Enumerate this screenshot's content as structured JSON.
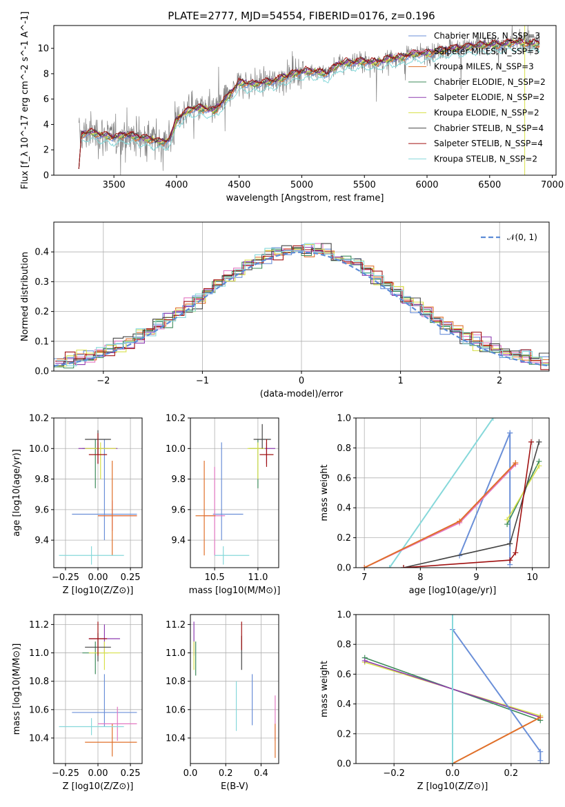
{
  "figure_title": "PLATE=2777, MJD=54554, FIBERID=0176, z=0.196",
  "colors": {
    "Chabrier MILES": "#6a8fd8",
    "Salpeter MILES": "#e377c2",
    "Kroupa MILES": "#e0702a",
    "Chabrier ELODIE": "#3d8b5a",
    "Salpeter ELODIE": "#8e3bb0",
    "Kroupa ELODIE": "#d8e04a",
    "Chabrier STELIB": "#444444",
    "Salpeter STELIB": "#a01010",
    "Kroupa STELIB": "#86d8da",
    "data": "#808080",
    "gaussian": "#5b8bd6"
  },
  "chart_data": [
    {
      "id": "spectrum",
      "type": "line",
      "title": "PLATE=2777, MJD=54554, FIBERID=0176, z=0.196",
      "xlabel": "wavelength [Angstrom, rest frame]",
      "ylabel": "Flux [f_λ 10^-17 erg cm^-2 s^-1 A^-1]",
      "xlim": [
        3020,
        7030
      ],
      "ylim": [
        0,
        11.8
      ],
      "xticks": [
        3500,
        4000,
        4500,
        5000,
        5500,
        6000,
        6500,
        7000
      ],
      "yticks": [
        0,
        2,
        4,
        6,
        8,
        10
      ],
      "grid": false,
      "legend_position": "top-right",
      "legend": [
        "Chabrier MILES, N_SSP=3",
        "Salpeter MILES, N_SSP=3",
        "Kroupa MILES, N_SSP=3",
        "Chabrier ELODIE, N_SSP=2",
        "Salpeter ELODIE, N_SSP=2",
        "Kroupa ELODIE, N_SSP=2",
        "Chabrier STELIB, N_SSP=4",
        "Salpeter STELIB, N_SSP=4",
        "Kroupa STELIB, N_SSP=2"
      ],
      "model_continuum": {
        "x": [
          3220,
          3300,
          3400,
          3500,
          3600,
          3700,
          3800,
          3900,
          3950,
          4000,
          4100,
          4200,
          4300,
          4400,
          4500,
          4600,
          4700,
          4800,
          4900,
          5000,
          5100,
          5200,
          5300,
          5400,
          5500,
          5600,
          5700,
          5800,
          5900,
          6000,
          6100,
          6200,
          6300,
          6400,
          6500,
          6600,
          6700,
          6800,
          6900
        ],
        "y": [
          3.1,
          3.4,
          3.2,
          3.0,
          3.2,
          3.0,
          2.8,
          2.6,
          2.9,
          4.4,
          5.2,
          5.3,
          5.1,
          6.1,
          7.3,
          7.2,
          7.3,
          7.5,
          7.9,
          8.2,
          8.2,
          8.0,
          8.8,
          8.9,
          9.0,
          8.9,
          9.2,
          9.3,
          9.6,
          9.6,
          9.8,
          10.0,
          10.1,
          10.2,
          10.3,
          10.3,
          10.5,
          10.4,
          10.4
        ]
      },
      "data_envelope_note": "noisy observed spectrum (grey) scattered around the model continuum"
    },
    {
      "id": "residuals",
      "type": "line",
      "xlabel": "(data-model)/error",
      "ylabel": "Normed distribution",
      "xlim": [
        -2.5,
        2.5
      ],
      "ylim": [
        0,
        0.5
      ],
      "xticks": [
        -2,
        -1,
        0,
        1,
        2
      ],
      "yticks": [
        0.0,
        0.1,
        0.2,
        0.3,
        0.4
      ],
      "grid": true,
      "legend_position": "top-right",
      "legend": [
        "𝒩(0, 1)"
      ],
      "bin_width": 0.1
    },
    {
      "id": "age_vs_Z",
      "type": "scatter",
      "xlabel": "Z [log10(Z/Z⊙)]",
      "ylabel": "age  [log10(age/yr)]",
      "xlim": [
        -0.34,
        0.34
      ],
      "ylim": [
        9.22,
        10.2
      ],
      "xticks": [
        -0.25,
        0.0,
        0.25
      ],
      "yticks": [
        9.4,
        9.6,
        9.8,
        10.0,
        10.2
      ],
      "grid": true,
      "points": [
        {
          "series": "Chabrier MILES",
          "x": 0.05,
          "y": 9.57,
          "xerr": [
            0.25,
            0.25
          ],
          "yerr": [
            0.17,
            0.49
          ]
        },
        {
          "series": "Salpeter MILES",
          "x": 0.11,
          "y": 9.56,
          "xerr": [
            0.11,
            0.19
          ],
          "yerr": [
            0.1,
            0.1
          ]
        },
        {
          "series": "Kroupa MILES",
          "x": 0.11,
          "y": 9.56,
          "xerr": [
            0.11,
            0.19
          ],
          "yerr": [
            0.26,
            0.36
          ]
        },
        {
          "series": "Chabrier ELODIE",
          "x": -0.02,
          "y": 10.0,
          "xerr": [
            0.1,
            0.1
          ],
          "yerr": [
            0.26,
            0.06
          ]
        },
        {
          "series": "Salpeter ELODIE",
          "x": 0.0,
          "y": 10.0,
          "xerr": [
            0.15,
            0.15
          ],
          "yerr": [
            0.1,
            0.04
          ]
        },
        {
          "series": "Kroupa ELODIE",
          "x": 0.02,
          "y": 10.0,
          "xerr": [
            0.12,
            0.12
          ],
          "yerr": [
            0.2,
            0.04
          ]
        },
        {
          "series": "Chabrier STELIB",
          "x": 0.0,
          "y": 10.06,
          "xerr": [
            0.1,
            0.1
          ],
          "yerr": [
            0.1,
            0.06
          ]
        },
        {
          "series": "Salpeter STELIB",
          "x": 0.0,
          "y": 9.96,
          "xerr": [
            0.07,
            0.07
          ],
          "yerr": [
            0.06,
            0.14
          ]
        },
        {
          "series": "Kroupa STELIB",
          "x": -0.05,
          "y": 9.3,
          "xerr": [
            0.25,
            0.25
          ],
          "yerr": [
            0.06,
            0.06
          ]
        }
      ]
    },
    {
      "id": "age_vs_mass",
      "type": "scatter",
      "xlabel": "mass [log10(M/M⊙)]",
      "ylabel": "",
      "xlim": [
        10.22,
        11.24
      ],
      "ylim": [
        9.22,
        10.2
      ],
      "xticks": [
        10.5,
        11.0
      ],
      "yticks": [
        9.4,
        9.6,
        9.8,
        10.0,
        10.2
      ],
      "grid": true,
      "points": [
        {
          "series": "Chabrier MILES",
          "x": 10.58,
          "y": 9.57,
          "xerr": [
            0.1,
            0.25
          ],
          "yerr": [
            0.17,
            0.47
          ]
        },
        {
          "series": "Salpeter MILES",
          "x": 10.5,
          "y": 9.56,
          "xerr": [
            0.12,
            0.12
          ],
          "yerr": [
            0.26,
            0.32
          ]
        },
        {
          "series": "Kroupa MILES",
          "x": 10.38,
          "y": 9.56,
          "xerr": [
            0.1,
            0.13
          ],
          "yerr": [
            0.26,
            0.36
          ]
        },
        {
          "series": "Chabrier ELODIE",
          "x": 11.0,
          "y": 10.0,
          "xerr": [
            0.1,
            0.08
          ],
          "yerr": [
            0.26,
            0.06
          ]
        },
        {
          "series": "Salpeter ELODIE",
          "x": 11.1,
          "y": 10.0,
          "xerr": [
            0.1,
            0.1
          ],
          "yerr": [
            0.1,
            0.04
          ]
        },
        {
          "series": "Kroupa ELODIE",
          "x": 11.0,
          "y": 10.0,
          "xerr": [
            0.12,
            0.08
          ],
          "yerr": [
            0.2,
            0.04
          ]
        },
        {
          "series": "Chabrier STELIB",
          "x": 11.05,
          "y": 10.06,
          "xerr": [
            0.1,
            0.1
          ],
          "yerr": [
            0.06,
            0.1
          ]
        },
        {
          "series": "Salpeter STELIB",
          "x": 11.1,
          "y": 9.96,
          "xerr": [
            0.08,
            0.08
          ],
          "yerr": [
            0.08,
            0.1
          ]
        },
        {
          "series": "Kroupa STELIB",
          "x": 10.6,
          "y": 9.3,
          "xerr": [
            0.1,
            0.3
          ],
          "yerr": [
            0.06,
            0.06
          ]
        }
      ]
    },
    {
      "id": "mass_weight_vs_age",
      "type": "line",
      "xlabel": "age  [log10(age/yr)]",
      "ylabel": "mass weight",
      "xlim": [
        6.85,
        10.3
      ],
      "ylim": [
        0.0,
        1.0
      ],
      "xticks": [
        7,
        8,
        9,
        10
      ],
      "yticks": [
        0.0,
        0.2,
        0.4,
        0.6,
        0.8,
        1.0
      ],
      "grid": true,
      "series": [
        {
          "name": "Kroupa STELIB",
          "x": [
            7.45,
            9.3
          ],
          "y": [
            0.0,
            1.0
          ]
        },
        {
          "name": "Chabrier MILES",
          "x": [
            9.6,
            9.6,
            8.7,
            9.6
          ],
          "y": [
            0.02,
            0.9,
            0.08,
            0.9
          ]
        },
        {
          "name": "Salpeter MILES",
          "x": [
            7.0,
            8.7,
            9.7
          ],
          "y": [
            0.0,
            0.3,
            0.69
          ]
        },
        {
          "name": "Kroupa MILES",
          "x": [
            7.0,
            8.7,
            9.7
          ],
          "y": [
            0.0,
            0.31,
            0.7
          ]
        },
        {
          "name": "Chabrier ELODIE",
          "x": [
            9.55,
            10.12
          ],
          "y": [
            0.29,
            0.71
          ]
        },
        {
          "name": "Kroupa ELODIE",
          "x": [
            9.55,
            10.12
          ],
          "y": [
            0.32,
            0.68
          ]
        },
        {
          "name": "Chabrier STELIB",
          "x": [
            7.7,
            9.6,
            10.12
          ],
          "y": [
            0.0,
            0.16,
            0.84
          ]
        },
        {
          "name": "Salpeter STELIB",
          "x": [
            7.7,
            9.6,
            9.7,
            9.98
          ],
          "y": [
            0.0,
            0.05,
            0.1,
            0.84
          ]
        }
      ]
    },
    {
      "id": "mass_vs_Z",
      "type": "scatter",
      "xlabel": "Z [log10(Z/Z⊙)]",
      "ylabel": "mass [log10(M/M⊙)]",
      "xlim": [
        -0.34,
        0.34
      ],
      "ylim": [
        10.22,
        11.27
      ],
      "xticks": [
        -0.25,
        0.0,
        0.25
      ],
      "yticks": [
        10.4,
        10.6,
        10.8,
        11.0,
        11.2
      ],
      "grid": true,
      "points": [
        {
          "series": "Chabrier MILES",
          "x": 0.05,
          "y": 10.58,
          "xerr": [
            0.25,
            0.25
          ],
          "yerr": [
            0.1,
            0.27
          ]
        },
        {
          "series": "Salpeter MILES",
          "x": 0.15,
          "y": 10.5,
          "xerr": [
            0.15,
            0.15
          ],
          "yerr": [
            0.12,
            0.12
          ]
        },
        {
          "series": "Kroupa MILES",
          "x": 0.11,
          "y": 10.37,
          "xerr": [
            0.21,
            0.19
          ],
          "yerr": [
            0.1,
            0.13
          ]
        },
        {
          "series": "Chabrier ELODIE",
          "x": -0.02,
          "y": 11.0,
          "xerr": [
            0.1,
            0.1
          ],
          "yerr": [
            0.15,
            0.08
          ]
        },
        {
          "series": "Salpeter ELODIE",
          "x": 0.05,
          "y": 11.1,
          "xerr": [
            0.12,
            0.12
          ],
          "yerr": [
            0.1,
            0.1
          ]
        },
        {
          "series": "Kroupa ELODIE",
          "x": 0.05,
          "y": 11.0,
          "xerr": [
            0.12,
            0.12
          ],
          "yerr": [
            0.12,
            0.08
          ]
        },
        {
          "series": "Chabrier STELIB",
          "x": 0.0,
          "y": 11.04,
          "xerr": [
            0.1,
            0.1
          ],
          "yerr": [
            0.1,
            0.1
          ]
        },
        {
          "series": "Salpeter STELIB",
          "x": 0.0,
          "y": 11.1,
          "xerr": [
            0.07,
            0.07
          ],
          "yerr": [
            0.12,
            0.12
          ]
        },
        {
          "series": "Kroupa STELIB",
          "x": -0.05,
          "y": 10.48,
          "xerr": [
            0.25,
            0.25
          ],
          "yerr": [
            0.06,
            0.06
          ]
        }
      ]
    },
    {
      "id": "mass_vs_ebv",
      "type": "scatter",
      "xlabel": "E(B-V)",
      "ylabel": "",
      "xlim": [
        0.0,
        0.5
      ],
      "ylim": [
        10.22,
        11.27
      ],
      "xticks": [
        0.0,
        0.2,
        0.4
      ],
      "yticks": [
        10.4,
        10.6,
        10.8,
        11.0,
        11.2
      ],
      "grid": true,
      "points": [
        {
          "series": "Chabrier MILES",
          "x": 0.35,
          "y": 10.67,
          "xerr": [
            0,
            0
          ],
          "yerr": [
            0.18,
            0.18
          ]
        },
        {
          "series": "Salpeter MILES",
          "x": 0.48,
          "y": 10.5,
          "xerr": [
            0,
            0
          ],
          "yerr": [
            0.12,
            0.2
          ]
        },
        {
          "series": "Kroupa MILES",
          "x": 0.48,
          "y": 10.38,
          "xerr": [
            0,
            0
          ],
          "yerr": [
            0.12,
            0.12
          ]
        },
        {
          "series": "Chabrier ELODIE",
          "x": 0.03,
          "y": 10.96,
          "xerr": [
            0,
            0
          ],
          "yerr": [
            0.12,
            0.12
          ]
        },
        {
          "series": "Salpeter ELODIE",
          "x": 0.02,
          "y": 11.1,
          "xerr": [
            0,
            0
          ],
          "yerr": [
            0.12,
            0.12
          ]
        },
        {
          "series": "Kroupa ELODIE",
          "x": 0.02,
          "y": 10.98,
          "xerr": [
            0,
            0
          ],
          "yerr": [
            0.1,
            0.1
          ]
        },
        {
          "series": "Chabrier STELIB",
          "x": 0.29,
          "y": 11.0,
          "xerr": [
            0,
            0
          ],
          "yerr": [
            0.12,
            0.12
          ]
        },
        {
          "series": "Salpeter STELIB",
          "x": 0.29,
          "y": 11.12,
          "xerr": [
            0,
            0
          ],
          "yerr": [
            0.1,
            0.1
          ]
        },
        {
          "series": "Kroupa STELIB",
          "x": 0.26,
          "y": 10.62,
          "xerr": [
            0,
            0
          ],
          "yerr": [
            0.17,
            0.18
          ]
        }
      ]
    },
    {
      "id": "mass_weight_vs_Z",
      "type": "line",
      "xlabel": "Z [log10(Z/Z⊙)]",
      "ylabel": "mass weight",
      "xlim": [
        -0.33,
        0.33
      ],
      "ylim": [
        0.0,
        1.0
      ],
      "xticks": [
        -0.2,
        0.0,
        0.2
      ],
      "yticks": [
        0.0,
        0.2,
        0.4,
        0.6,
        0.8,
        1.0
      ],
      "grid": true,
      "series": [
        {
          "name": "Chabrier ELODIE",
          "x": [
            -0.3,
            0.3
          ],
          "y": [
            0.71,
            0.29
          ]
        },
        {
          "name": "Kroupa ELODIE",
          "x": [
            -0.3,
            0.3
          ],
          "y": [
            0.68,
            0.32
          ]
        },
        {
          "name": "Salpeter ELODIE",
          "x": [
            -0.3,
            0.3
          ],
          "y": [
            0.69,
            0.31
          ]
        },
        {
          "name": "Chabrier MILES",
          "x": [
            0.0,
            0.3,
            0.3
          ],
          "y": [
            0.9,
            0.08,
            0.02
          ]
        },
        {
          "name": "Kroupa MILES",
          "x": [
            0.0,
            0.3
          ],
          "y": [
            0.0,
            0.31
          ]
        },
        {
          "name": "Kroupa STELIB",
          "x": [
            0.0,
            0.0
          ],
          "y": [
            0.0,
            1.0
          ]
        }
      ]
    }
  ]
}
